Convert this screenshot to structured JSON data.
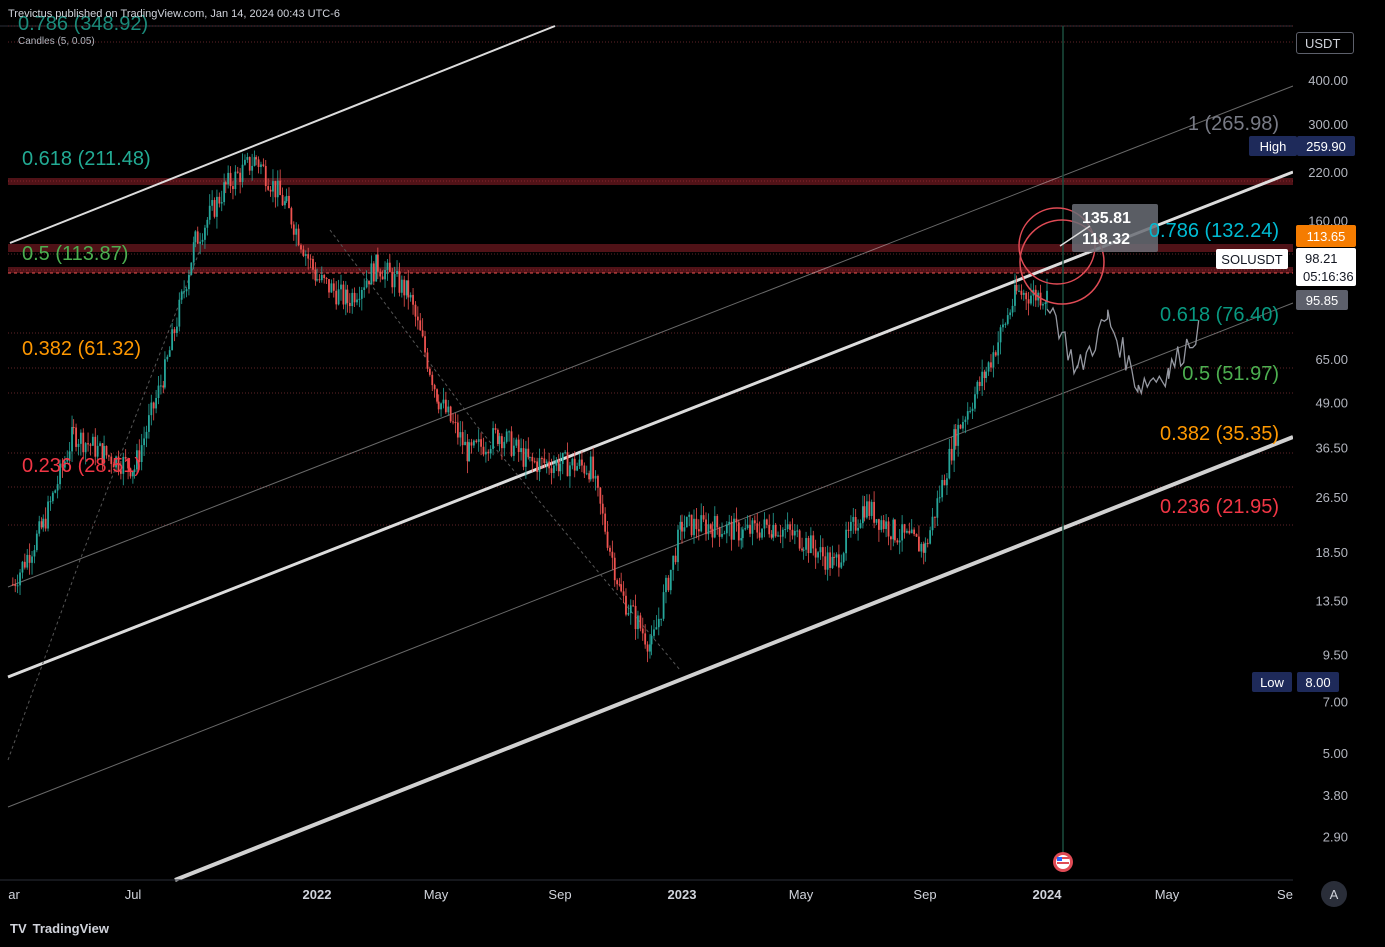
{
  "header": {
    "publisher": "Trevictus published on TradingView.com, Jan 14, 2024 00:43 UTC-6",
    "indicator": "Candles (5, 0.05)",
    "top_label_partial": "0.786 (348.92)"
  },
  "footer": {
    "brand": "TradingView",
    "auto_button": "A"
  },
  "price_scale": {
    "currency": "USDT",
    "ticks": [
      "400.00",
      "300.00",
      "220.00",
      "160.00",
      "95.00",
      "65.00",
      "49.00",
      "36.50",
      "26.50",
      "18.50",
      "13.50",
      "9.50",
      "7.00",
      "5.00",
      "3.80",
      "2.90"
    ],
    "tick_values": [
      400,
      300,
      220,
      160,
      95,
      65,
      49,
      36.5,
      26.5,
      18.5,
      13.5,
      9.5,
      7,
      5,
      3.8,
      2.9
    ],
    "high_label": "High",
    "high_value": "259.90",
    "low_label": "Low",
    "low_value": "8.00",
    "orange_tag": "113.65",
    "symbol": "SOLUSDT",
    "last_price": "98.21",
    "countdown": "05:16:36",
    "grey_tag": "95.85"
  },
  "time_axis": {
    "labels": [
      "ar",
      "Jul",
      "2022",
      "May",
      "Sep",
      "2023",
      "May",
      "Sep",
      "2024",
      "May",
      "Se"
    ],
    "bold": [
      false,
      false,
      true,
      false,
      false,
      true,
      false,
      false,
      true,
      false,
      false
    ]
  },
  "annotations": {
    "box_upper": "135.81",
    "box_lower": "118.32"
  },
  "colors": {
    "background": "#000000",
    "candle_up": "#26a69a",
    "candle_down": "#ef5350",
    "channel": "#e8e8e8",
    "fib_left_618": "#22ab94",
    "fib_left_05": "#4caf50",
    "fib_left_382": "#ff9800",
    "fib_left_236": "#f23645",
    "fib_right_1": "#787b86",
    "fib_right_786": "#00bcd4",
    "fib_right_618": "#089981",
    "fib_right_05": "#4caf50",
    "fib_right_382": "#ff9800",
    "fib_right_236": "#f23645",
    "resistance_band": "#b22833",
    "orange_tag": "#f57c00",
    "high_low_tag": "#1e2a5a"
  },
  "chart_data": {
    "type": "candlestick",
    "title": "SOLUSDT",
    "y_scale": "log",
    "ylim": [
      2.5,
      500
    ],
    "x_range": [
      "2021-03",
      "2024-09"
    ],
    "series": [
      {
        "name": "SOLUSDT",
        "approx_closes": [
          {
            "x": "2021-03",
            "y": 15
          },
          {
            "x": "2021-04",
            "y": 22
          },
          {
            "x": "2021-05",
            "y": 40
          },
          {
            "x": "2021-06",
            "y": 35
          },
          {
            "x": "2021-07",
            "y": 32
          },
          {
            "x": "2021-08",
            "y": 60
          },
          {
            "x": "2021-09",
            "y": 140
          },
          {
            "x": "2021-10",
            "y": 200
          },
          {
            "x": "2021-11",
            "y": 240
          },
          {
            "x": "2021-12",
            "y": 175
          },
          {
            "x": "2022-01",
            "y": 110
          },
          {
            "x": "2022-02",
            "y": 95
          },
          {
            "x": "2022-03",
            "y": 120
          },
          {
            "x": "2022-04",
            "y": 100
          },
          {
            "x": "2022-05",
            "y": 50
          },
          {
            "x": "2022-06",
            "y": 35
          },
          {
            "x": "2022-07",
            "y": 40
          },
          {
            "x": "2022-08",
            "y": 33
          },
          {
            "x": "2022-09",
            "y": 33
          },
          {
            "x": "2022-10",
            "y": 32
          },
          {
            "x": "2022-11",
            "y": 14
          },
          {
            "x": "2022-12",
            "y": 10
          },
          {
            "x": "2023-01",
            "y": 22
          },
          {
            "x": "2023-02",
            "y": 22
          },
          {
            "x": "2023-03",
            "y": 21
          },
          {
            "x": "2023-04",
            "y": 22
          },
          {
            "x": "2023-05",
            "y": 20
          },
          {
            "x": "2023-06",
            "y": 17
          },
          {
            "x": "2023-07",
            "y": 25
          },
          {
            "x": "2023-08",
            "y": 21
          },
          {
            "x": "2023-09",
            "y": 19
          },
          {
            "x": "2023-10",
            "y": 40
          },
          {
            "x": "2023-11",
            "y": 60
          },
          {
            "x": "2023-12",
            "y": 100
          },
          {
            "x": "2024-01",
            "y": 98
          }
        ]
      },
      {
        "name": "projection",
        "approx_closes": [
          {
            "x": "2024-01",
            "y": 98
          },
          {
            "x": "2024-02",
            "y": 60
          },
          {
            "x": "2024-03",
            "y": 85
          },
          {
            "x": "2024-04",
            "y": 55
          },
          {
            "x": "2024-05",
            "y": 60
          },
          {
            "x": "2024-06",
            "y": 80
          }
        ]
      }
    ],
    "fib_left": [
      {
        "label": "0.618 (211.48)",
        "value": 211.48
      },
      {
        "label": "0.5 (113.87)",
        "value": 113.87
      },
      {
        "label": "0.382 (61.32)",
        "value": 61.32
      },
      {
        "label": "0.236 (28.51)",
        "value": 28.51
      }
    ],
    "fib_right": [
      {
        "label": "1 (265.98)",
        "value": 265.98
      },
      {
        "label": "0.786 (132.24)",
        "value": 132.24
      },
      {
        "label": "0.618 (76.40)",
        "value": 76.4
      },
      {
        "label": "0.5 (51.97)",
        "value": 51.97
      },
      {
        "label": "0.382 (35.35)",
        "value": 35.35
      },
      {
        "label": "0.236 (21.95)",
        "value": 21.95
      }
    ]
  }
}
